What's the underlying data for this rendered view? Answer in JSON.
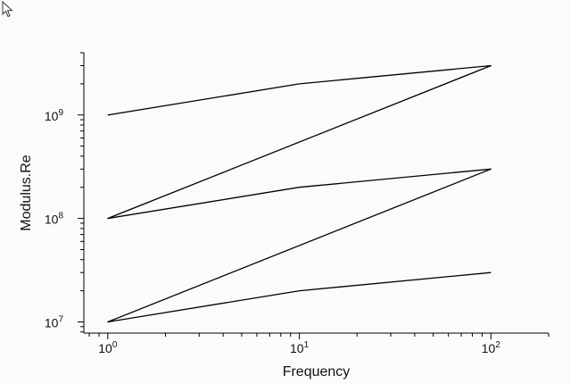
{
  "cursor": {
    "icon": "mouse-pointer-icon"
  },
  "chart_data": {
    "type": "line",
    "xlabel": "Frequency",
    "ylabel": "Modulus.Re",
    "xscale": "log",
    "yscale": "log",
    "xlim": [
      0.75,
      200
    ],
    "ylim": [
      7800000,
      4000000000
    ],
    "grid": false,
    "x_ticks": [
      {
        "value": 1,
        "base": "10",
        "exp": "0"
      },
      {
        "value": 10,
        "base": "10",
        "exp": "1"
      },
      {
        "value": 100,
        "base": "10",
        "exp": "2"
      }
    ],
    "y_ticks": [
      {
        "value": 10000000,
        "base": "10",
        "exp": "7"
      },
      {
        "value": 100000000,
        "base": "10",
        "exp": "8"
      },
      {
        "value": 1000000000,
        "base": "10",
        "exp": "9"
      }
    ],
    "series": [
      {
        "color": "#000000",
        "x": [
          1,
          10,
          100,
          1,
          10,
          100,
          1,
          10,
          100
        ],
        "y": [
          1000000000,
          2000000000,
          3000000000,
          100000000,
          200000000,
          300000000,
          10000000,
          20000000,
          30000000
        ]
      }
    ]
  }
}
